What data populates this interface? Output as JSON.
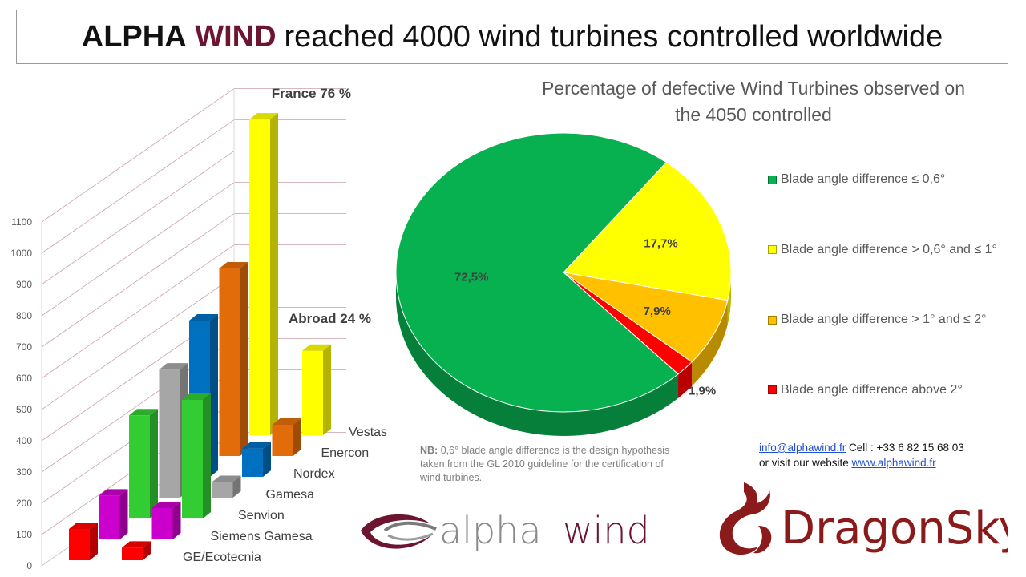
{
  "title": {
    "brand_part1": "ALPHA",
    "brand_part2": "WIND",
    "rest": "reached 4000 wind turbines controlled worldwide"
  },
  "colors": {
    "brand": "#6d1530",
    "green": "#08b150",
    "yellow": "#ffff00",
    "orange": "#ffc000",
    "red": "#ff0000",
    "bar_yellow": "#ffff00",
    "bar_orange": "#e36c0a",
    "bar_blue": "#0070c0",
    "bar_gray": "#a6a6a6",
    "bar_green": "#33cc33",
    "bar_purple": "#cc00cc",
    "bar_red": "#ff0000"
  },
  "chart_data": [
    {
      "type": "bar",
      "style": "3d-clustered",
      "categories": [
        "Vestas",
        "Enercon",
        "Nordex",
        "Gamesa",
        "Senvion",
        "Siemens Gamesa",
        "GE/Ecotecnia"
      ],
      "series": [
        {
          "name": "France 76 %",
          "values": [
            1010,
            600,
            500,
            410,
            330,
            140,
            100
          ]
        },
        {
          "name": "Abroad 24 %",
          "values": [
            270,
            100,
            90,
            50,
            380,
            100,
            40
          ]
        }
      ],
      "ylim": [
        0,
        1100
      ],
      "yticks": [
        "0",
        "100",
        "200",
        "300",
        "400",
        "500",
        "600",
        "700",
        "800",
        "900",
        "1000",
        "1100"
      ],
      "grid": true
    },
    {
      "type": "pie",
      "style": "3d",
      "title": "Percentage of defective Wind Turbines observed on the 4050 controlled",
      "title_lines": [
        "Percentage of defective Wind Turbines observed on",
        "the 4050 controlled"
      ],
      "slices": [
        {
          "label": "Blade angle difference ≤ 0,6°",
          "value": 72.5,
          "text": "72,5%",
          "color": "#08b150"
        },
        {
          "label": "Blade angle difference > 0,6° and ≤ 1°",
          "value": 17.7,
          "text": "17,7%",
          "color": "#ffff00"
        },
        {
          "label": "Blade angle difference > 1° and ≤ 2°",
          "value": 7.9,
          "text": "7,9%",
          "color": "#ffc000"
        },
        {
          "label": "Blade angle difference above 2°",
          "value": 1.9,
          "text": "1,9%",
          "color": "#ff0000"
        }
      ],
      "legend": "right"
    }
  ],
  "note": {
    "label": "NB:",
    "text": "0,6° blade angle difference is the design hypothesis taken from the GL 2010 guideline for the certification of wind turbines."
  },
  "contact": {
    "email": "info@alphawind.fr",
    "cell": "Cell : +33 6 82 15 68 03",
    "visit": "or visit our website",
    "website": "www.alphawind.fr"
  },
  "logos": {
    "alpha_a": "alpha",
    "alpha_b": "wind",
    "dragon": "DragonSky"
  }
}
